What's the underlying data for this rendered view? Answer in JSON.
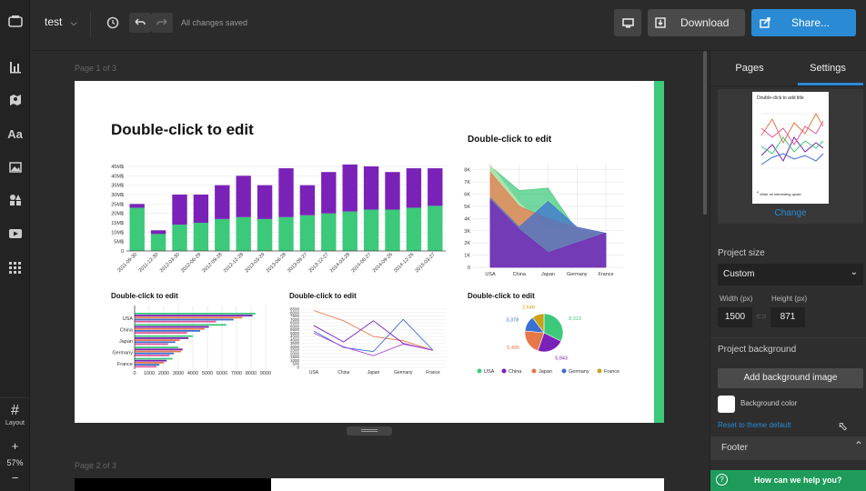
{
  "topbar": {
    "project_name": "test",
    "saved_status": "All changes saved",
    "download_label": "Download",
    "share_label": "Share..."
  },
  "leftbar": {
    "layout_label": "Layout",
    "zoom": "57%"
  },
  "canvas": {
    "page1_label": "Page 1 of 3",
    "page2_label": "Page 2 of 3"
  },
  "page": {
    "main_title": "Double-click to edit",
    "charts": [
      {
        "title": "Double-click to edit"
      },
      {
        "title": "Double-click to edit"
      },
      {
        "title": "Double-click to edit"
      },
      {
        "title": "Double-click to edit"
      },
      {
        "title": "Double-click to edit"
      }
    ]
  },
  "rightpanel": {
    "tab_pages": "Pages",
    "tab_settings": "Settings",
    "thumb_title": "Double-click to add title",
    "thumb_quote": "Write an interesting quote",
    "change_label": "Change",
    "project_size_label": "Project size",
    "size_select": "Custom",
    "width_label": "Width (px)",
    "height_label": "Height (px)",
    "width_value": "1500",
    "height_value": "871",
    "project_background_label": "Project background",
    "add_bg_button": "Add background image",
    "bg_color_label": "Background color",
    "reset_theme": "Reset to theme default",
    "footer_label": "Footer",
    "help_label": "How can we help you?"
  },
  "colors": {
    "accent_blue": "#2a8bd4",
    "green": "#3cc97a",
    "purple": "#7a22b8"
  },
  "chart_data": [
    {
      "type": "bar",
      "stacked": true,
      "categories": [
        "2011-09-30",
        "2011-12-30",
        "2012-03-30",
        "2012-06-29",
        "2012-09-28",
        "2012-12-28",
        "2013-03-29",
        "2013-06-28",
        "2013-09-27",
        "2013-12-27",
        "2014-03-28",
        "2014-06-27",
        "2014-09-26",
        "2014-12-26",
        "2015-03-27"
      ],
      "series": [
        {
          "name": "",
          "values": [
            23,
            9,
            14,
            15,
            17,
            18,
            17,
            18,
            19,
            20,
            21,
            22,
            22,
            23,
            24
          ]
        },
        {
          "name": "",
          "values": [
            2,
            2,
            16,
            15,
            18,
            22,
            18,
            26,
            16,
            22,
            25,
            23,
            20,
            21,
            20
          ]
        }
      ],
      "yticks": [
        "0",
        "5M$",
        "10M$",
        "15M$",
        "20M$",
        "25M$",
        "30M$",
        "35M$",
        "40M$",
        "45M$"
      ],
      "ylim": [
        0,
        45
      ]
    },
    {
      "type": "area",
      "categories": [
        "USA",
        "China",
        "Japan",
        "Germany",
        "France"
      ],
      "series": [
        {
          "name": "",
          "values": [
            8300,
            6300,
            6500,
            3000,
            2800
          ]
        },
        {
          "name": "",
          "values": [
            8400,
            5300,
            3200,
            3000,
            2800
          ]
        },
        {
          "name": "",
          "values": [
            7800,
            5000,
            4000,
            3300,
            2800
          ]
        },
        {
          "name": "",
          "values": [
            5700,
            3300,
            5400,
            3300,
            2800
          ]
        },
        {
          "name": "",
          "values": [
            5500,
            3100,
            1200,
            2000,
            2800
          ]
        }
      ],
      "yticks": [
        "0",
        "1K",
        "2K",
        "3K",
        "4K",
        "5K",
        "6K",
        "7K",
        "8K"
      ],
      "ylim": [
        0,
        8500
      ]
    },
    {
      "type": "bar",
      "orientation": "horizontal",
      "categories": [
        "USA",
        "China",
        "Japan",
        "Germany",
        "France"
      ],
      "series": [
        {
          "name": "",
          "values": [
            8300,
            6300,
            4000,
            3000,
            2600
          ]
        },
        {
          "name": "",
          "values": [
            8100,
            5100,
            3700,
            3300,
            2200
          ]
        },
        {
          "name": "",
          "values": [
            7400,
            4800,
            3100,
            3200,
            2000
          ]
        },
        {
          "name": "",
          "values": [
            6800,
            4500,
            2800,
            2700,
            1700
          ]
        },
        {
          "name": "",
          "values": [
            5600,
            3600,
            2300,
            2400,
            1500
          ]
        }
      ],
      "xticks": [
        "0",
        "1000",
        "2000",
        "3000",
        "4000",
        "5000",
        "6000",
        "7000",
        "8000",
        "9000"
      ],
      "xlim": [
        0,
        9000
      ]
    },
    {
      "type": "line",
      "categories": [
        "USA",
        "China",
        "Japan",
        "Germany",
        "France"
      ],
      "series": [
        {
          "name": "",
          "values": [
            8300,
            6800,
            4500,
            3900,
            2500
          ]
        },
        {
          "name": "",
          "values": [
            6100,
            3700,
            6800,
            3500,
            2500
          ]
        },
        {
          "name": "",
          "values": [
            5300,
            2900,
            2300,
            7000,
            2500
          ]
        },
        {
          "name": "",
          "values": [
            5000,
            3000,
            1700,
            3400,
            2500
          ]
        }
      ],
      "yticks": [
        "0",
        "500",
        "1000",
        "1500",
        "2000",
        "2500",
        "3000",
        "3500",
        "4000",
        "4500",
        "5000",
        "5500",
        "6000",
        "6500",
        "7000",
        "7500",
        "8000",
        "8500"
      ],
      "ylim": [
        0,
        8500
      ]
    },
    {
      "type": "pie",
      "labels": [
        "USA",
        "China",
        "Japan",
        "Germany",
        "France"
      ],
      "values": [
        8313,
        5943,
        5495,
        3378,
        2648
      ],
      "slice_labels": [
        "8,313",
        "5,943",
        "5,495",
        "3,378",
        "2,648"
      ],
      "legend": [
        "USA",
        "China",
        "Japan",
        "Germany",
        "France"
      ]
    }
  ]
}
